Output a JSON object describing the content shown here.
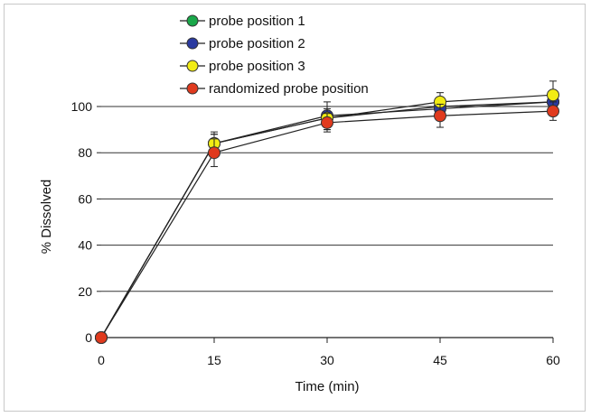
{
  "chart_data": {
    "type": "line",
    "title": "",
    "xlabel": "Time (min)",
    "ylabel": "% Dissolved",
    "x": [
      0,
      15,
      30,
      45,
      60
    ],
    "xticks": [
      "0",
      "15",
      "30",
      "45",
      "60"
    ],
    "yticks": [
      "0",
      "20",
      "40",
      "60",
      "80",
      "100"
    ],
    "xlim": [
      0,
      60
    ],
    "ylim": [
      0,
      100
    ],
    "grid": "horizontal",
    "legend_position": "top-center",
    "series": [
      {
        "name": "probe position 1",
        "color": "#1aa84a",
        "values": [
          0,
          84,
          95,
          100,
          102
        ],
        "errors": [
          0,
          4,
          4,
          4,
          4
        ]
      },
      {
        "name": "probe position 2",
        "color": "#2a3aa0",
        "values": [
          0,
          84,
          96,
          99,
          102
        ],
        "errors": [
          0,
          4,
          6,
          4,
          4
        ]
      },
      {
        "name": "probe position 3",
        "color": "#f2ec14",
        "values": [
          0,
          84,
          95,
          102,
          105
        ],
        "errors": [
          0,
          5,
          5,
          4,
          6
        ]
      },
      {
        "name": "randomized probe position",
        "color": "#e03a1e",
        "values": [
          0,
          80,
          93,
          96,
          98
        ],
        "errors": [
          0,
          6,
          4,
          5,
          4
        ]
      }
    ]
  }
}
